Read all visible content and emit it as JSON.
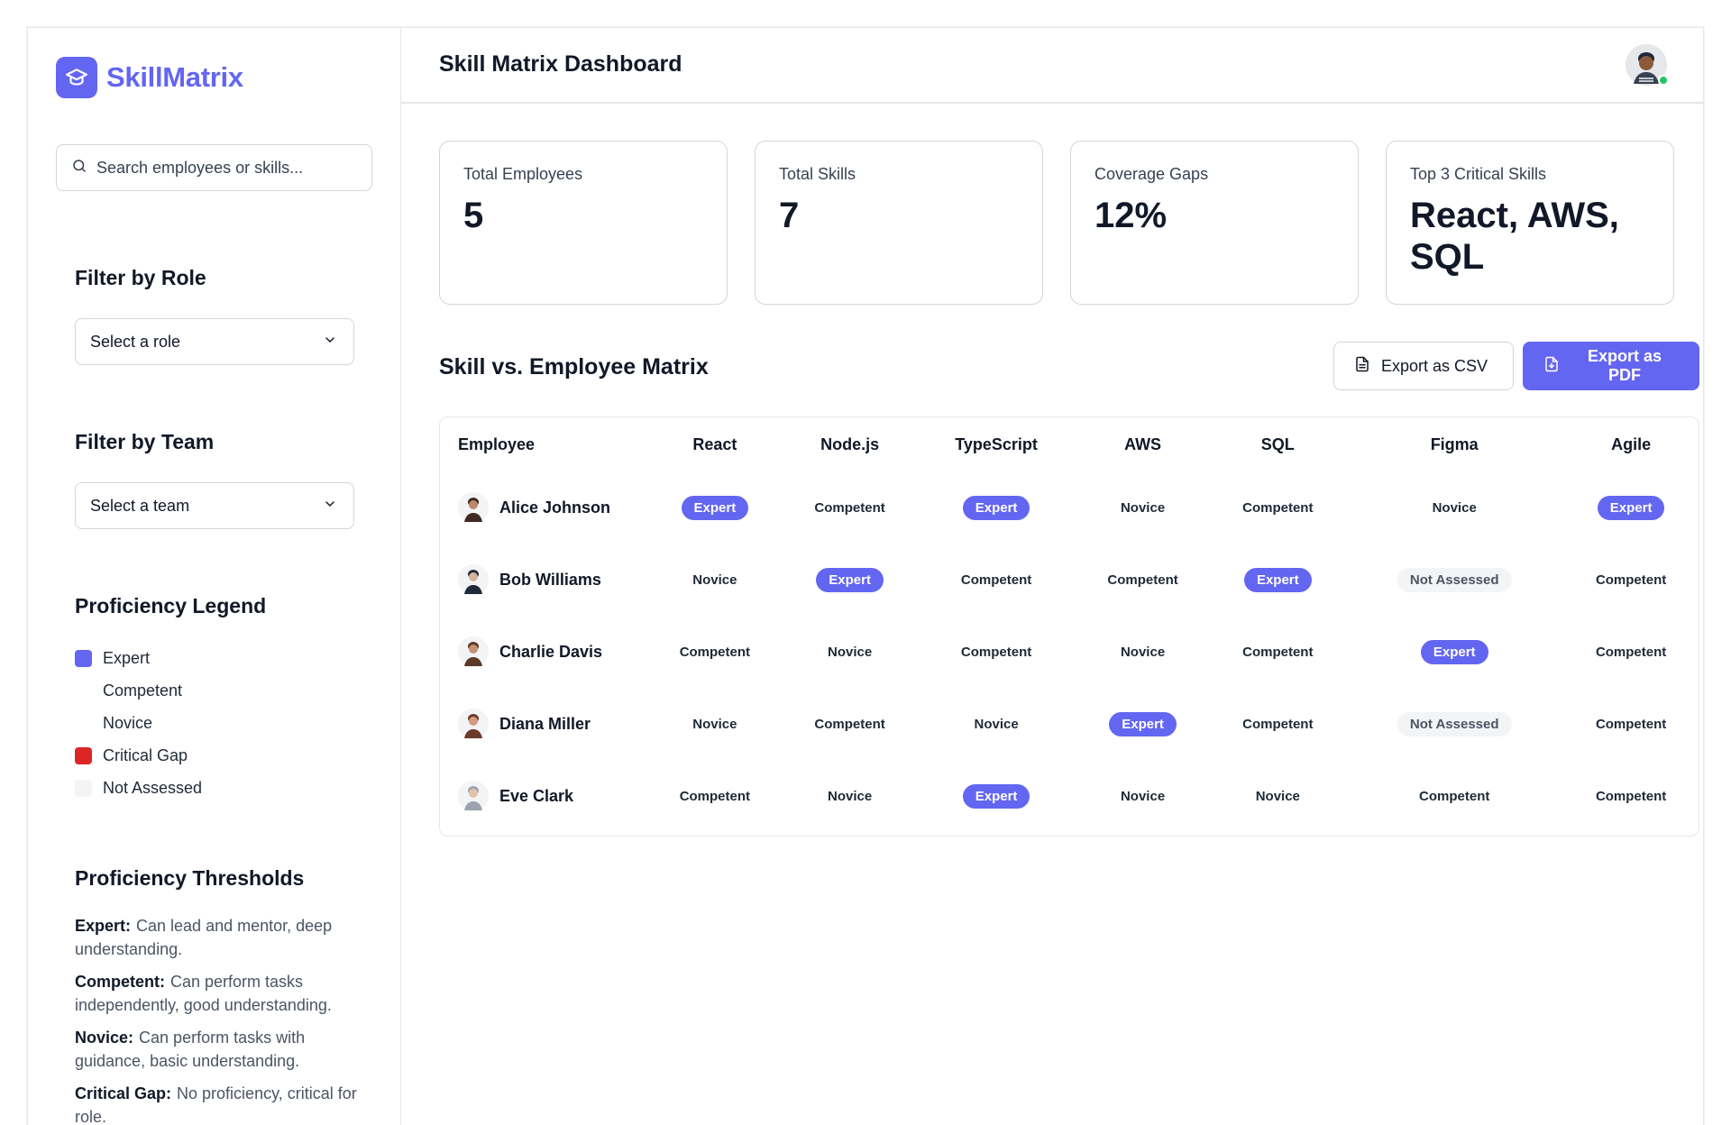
{
  "app": {
    "name": "SkillMatrix"
  },
  "search": {
    "placeholder": "Search employees or skills..."
  },
  "filters": {
    "role": {
      "title": "Filter by Role",
      "selected": "Select a role"
    },
    "team": {
      "title": "Filter by Team",
      "selected": "Select a team"
    }
  },
  "legend": {
    "title": "Proficiency Legend",
    "items": [
      {
        "label": "Expert",
        "color": "#6366f1"
      },
      {
        "label": "Competent",
        "color": ""
      },
      {
        "label": "Novice",
        "color": ""
      },
      {
        "label": "Critical Gap",
        "color": "#dc2626"
      },
      {
        "label": "Not Assessed",
        "color": "#f3f4f6"
      }
    ]
  },
  "thresholds": {
    "title": "Proficiency Thresholds",
    "items": [
      {
        "level": "Expert:",
        "desc": "Can lead and mentor, deep understanding."
      },
      {
        "level": "Competent:",
        "desc": "Can perform tasks independently, good understanding."
      },
      {
        "level": "Novice:",
        "desc": "Can perform tasks with guidance, basic understanding."
      },
      {
        "level": "Critical Gap:",
        "desc": "No proficiency, critical for role."
      }
    ]
  },
  "header": {
    "title": "Skill Matrix Dashboard"
  },
  "stats": [
    {
      "label": "Total Employees",
      "value": "5"
    },
    {
      "label": "Total Skills",
      "value": "7"
    },
    {
      "label": "Coverage Gaps",
      "value": "12%"
    },
    {
      "label": "Top 3 Critical Skills",
      "value": "React, AWS, SQL"
    }
  ],
  "matrix": {
    "title": "Skill vs. Employee Matrix",
    "export_csv": "Export as CSV",
    "export_pdf": "Export as PDF",
    "columns": [
      "Employee",
      "React",
      "Node.js",
      "TypeScript",
      "AWS",
      "SQL",
      "Figma",
      "Agile"
    ],
    "rows": [
      {
        "name": "Alice Johnson",
        "cells": [
          "Expert",
          "Competent",
          "Expert",
          "Novice",
          "Competent",
          "Novice",
          "Expert"
        ]
      },
      {
        "name": "Bob Williams",
        "cells": [
          "Novice",
          "Expert",
          "Competent",
          "Competent",
          "Expert",
          "Not Assessed",
          "Competent"
        ]
      },
      {
        "name": "Charlie Davis",
        "cells": [
          "Competent",
          "Novice",
          "Competent",
          "Novice",
          "Competent",
          "Expert",
          "Competent"
        ]
      },
      {
        "name": "Diana Miller",
        "cells": [
          "Novice",
          "Competent",
          "Novice",
          "Expert",
          "Competent",
          "Not Assessed",
          "Competent"
        ]
      },
      {
        "name": "Eve Clark",
        "cells": [
          "Competent",
          "Novice",
          "Expert",
          "Novice",
          "Novice",
          "Competent",
          "Competent"
        ]
      }
    ]
  },
  "colors": {
    "accent": "#6366f1",
    "critical": "#dc2626",
    "online": "#22c55e"
  }
}
